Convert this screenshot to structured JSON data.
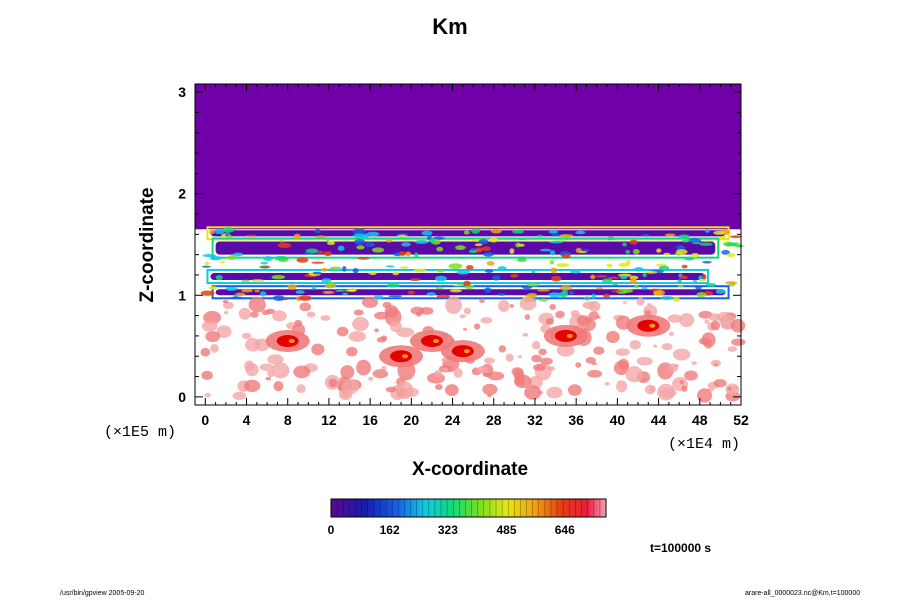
{
  "chart_data": {
    "type": "heatmap",
    "title": "Km",
    "xlabel": "X-coordinate",
    "ylabel": "Z-coordinate",
    "x_unit": "(×1E4 m)",
    "y_unit": "(×1E5 m)",
    "xlim": [
      -1,
      52
    ],
    "ylim": [
      -0.08,
      3.08
    ],
    "x_ticks": [
      "0",
      "4",
      "8",
      "12",
      "16",
      "20",
      "24",
      "28",
      "32",
      "36",
      "40",
      "44",
      "48",
      "52"
    ],
    "y_ticks": [
      "0",
      "1",
      "2",
      "3"
    ],
    "colorbar": {
      "ticks": [
        "0",
        "162",
        "323",
        "485",
        "646"
      ],
      "range": [
        0,
        760
      ]
    },
    "colors": {
      "upper_fill": "#7000a8",
      "band_fill": "#5a0aa6",
      "hot": "#e60000",
      "warm": "#f07a7a"
    },
    "structure": [
      {
        "region": "upper uniform layer",
        "z_from": 1.65,
        "z_to": 3.08,
        "value": 0
      },
      {
        "region": "layered bands",
        "z_from": 0.95,
        "z_to": 1.65,
        "value_range": [
          0,
          760
        ]
      },
      {
        "region": "lower turbulent layer",
        "z_from": 0.0,
        "z_to": 0.95,
        "value_range": [
          0,
          760
        ]
      }
    ]
  },
  "annotations": {
    "time": "t=100000 s",
    "footer_left": "/usr/bin/gpview 2005-09-20",
    "footer_right": "arare-all_0000023.nc@Km,t=100000"
  }
}
